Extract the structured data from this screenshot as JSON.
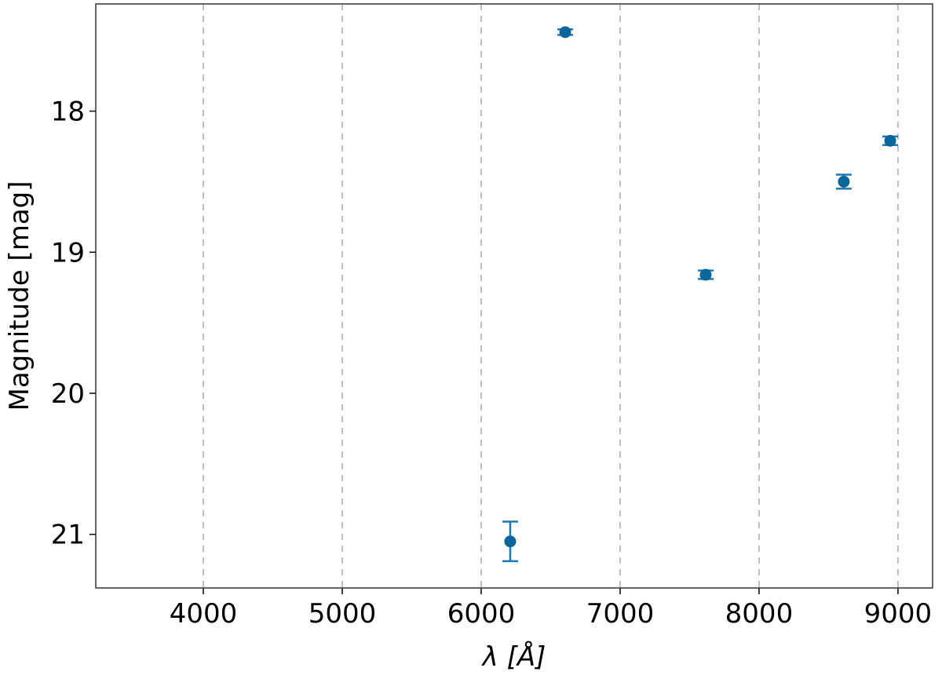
{
  "chart_data": {
    "type": "errorbar",
    "x_label": "λ [Å]",
    "y_label": "Magnitude [mag]",
    "x": [
      6605,
      6209,
      7616,
      8610,
      8944
    ],
    "series": [
      {
        "color": "#0b6699",
        "values": [
          17.44,
          21.05,
          19.16,
          18.5,
          18.21
        ],
        "errors": [
          0.02,
          0.14,
          0.03,
          0.05,
          0.03
        ]
      }
    ],
    "xlim": [
      3226,
      9249
    ],
    "xticks": [
      4000,
      5000,
      6000,
      7000,
      8000,
      9000
    ],
    "ylim": [
      21.38,
      17.24
    ],
    "yticks": [
      18,
      19,
      20,
      21
    ],
    "grid": "x"
  }
}
